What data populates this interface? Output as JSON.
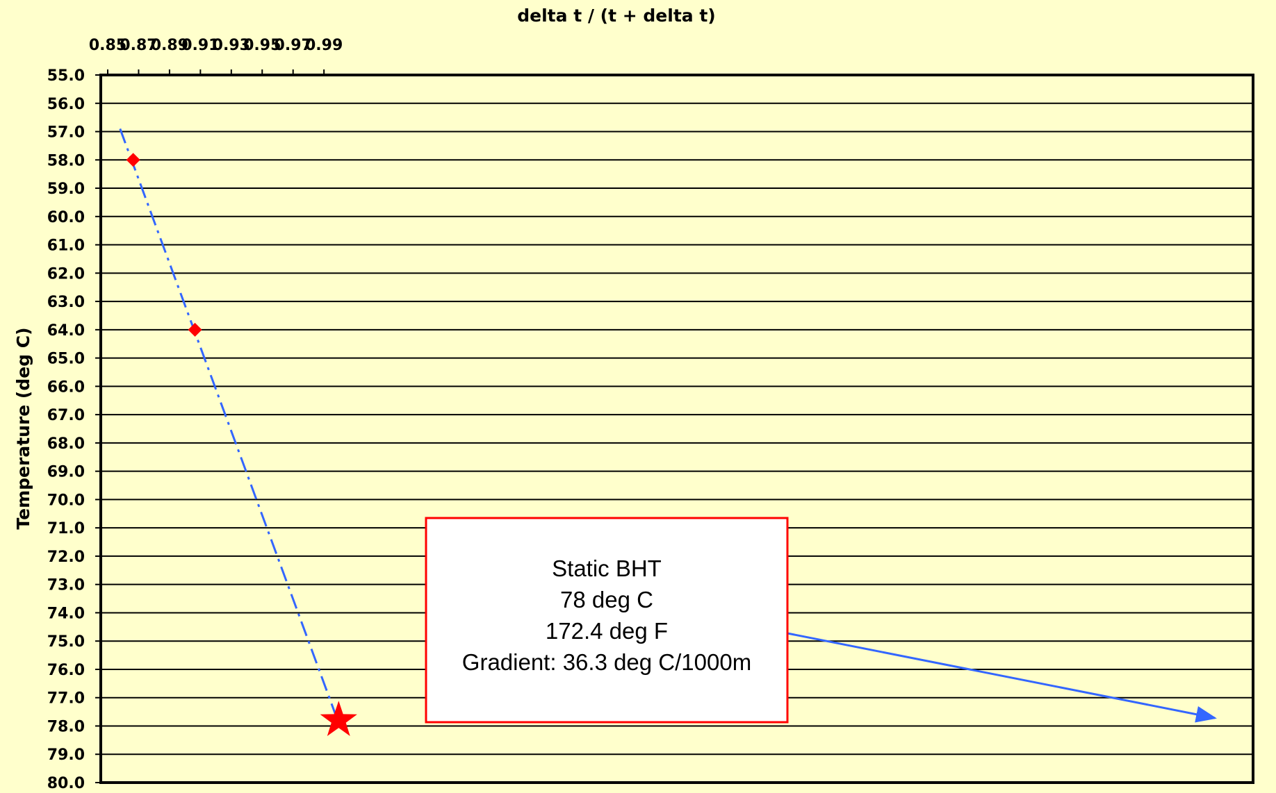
{
  "chart_data": {
    "type": "scatter",
    "xlabel": "delta t / (t + delta t)",
    "ylabel": "Temperature (deg C)",
    "xlim": [
      0.85,
      1.0
    ],
    "ylim": [
      55.0,
      80.0
    ],
    "y_inverted": true,
    "x_axis_position": "top",
    "x_ticks": [
      "0.85",
      "0.87",
      "0.89",
      "0.91",
      "0.93",
      "0.95",
      "0.97",
      "0.99"
    ],
    "y_ticks": [
      "55.0",
      "56.0",
      "57.0",
      "58.0",
      "59.0",
      "60.0",
      "61.0",
      "62.0",
      "63.0",
      "64.0",
      "65.0",
      "66.0",
      "67.0",
      "68.0",
      "69.0",
      "70.0",
      "71.0",
      "72.0",
      "73.0",
      "74.0",
      "75.0",
      "76.0",
      "77.0",
      "78.0",
      "79.0",
      "80.0"
    ],
    "grid": "horizontal",
    "series": [
      {
        "kind": "points",
        "marker": "diamond",
        "color": "#FF0000",
        "x": [
          0.8665,
          0.9065
        ],
        "y": [
          58.0,
          64.0
        ]
      },
      {
        "kind": "trendline",
        "style": "dash-dot",
        "color": "#3366FF",
        "x": [
          0.858,
          0.9975
        ],
        "y": [
          56.9,
          77.6
        ]
      },
      {
        "kind": "extrapolated-point",
        "marker": "star",
        "color": "#FF0000",
        "x": [
          0.9995
        ],
        "y": [
          77.8
        ]
      }
    ],
    "annotation": {
      "lines": [
        "Static BHT",
        "78 deg C",
        "172.4 deg F",
        "Gradient: 36.3 deg C/1000m"
      ],
      "border_color": "#FF0000",
      "arrow_color": "#3366FF"
    }
  }
}
